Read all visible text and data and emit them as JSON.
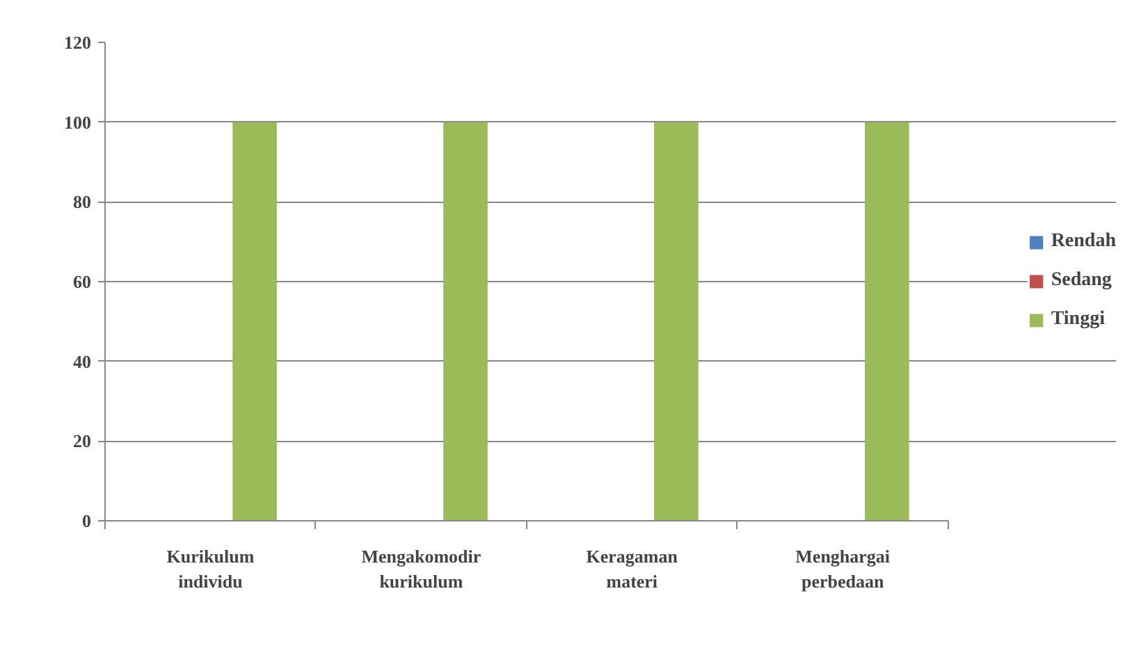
{
  "chart_data": {
    "type": "bar",
    "categories": [
      "Kurikulum individu",
      "Mengakomodir kurikulum",
      "Keragaman materi",
      "Menghargai perbedaan"
    ],
    "series": [
      {
        "name": "Rendah",
        "color": "#4f81bd",
        "values": [
          0,
          0,
          0,
          0
        ]
      },
      {
        "name": "Sedang",
        "color": "#c0504d",
        "values": [
          0,
          0,
          0,
          0
        ]
      },
      {
        "name": "Tinggi",
        "color": "#9bbb59",
        "values": [
          100,
          100,
          100,
          100
        ]
      }
    ],
    "ylim": [
      0,
      120
    ],
    "yticks": [
      0,
      20,
      40,
      60,
      80,
      100,
      120
    ],
    "grid": "y",
    "legend": "right"
  }
}
